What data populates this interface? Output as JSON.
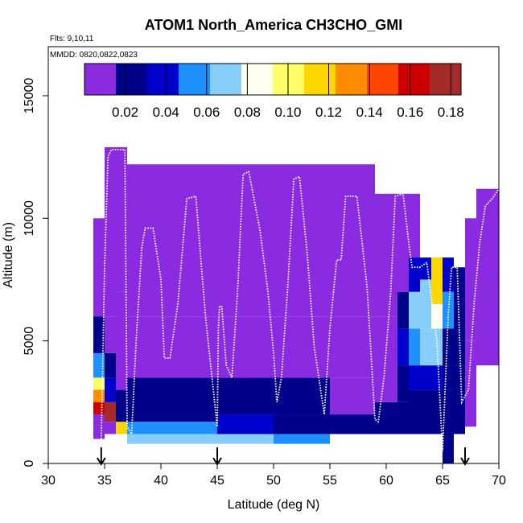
{
  "chart_data": {
    "type": "heatmap",
    "title": "ATOM1 North_America CH3CHO_GMI",
    "annotations": {
      "flights": "Flts: 9,10,11",
      "dates": "MMDD: 0820,0822,0823"
    },
    "xlabel": "Latitude (deg N)",
    "ylabel": "Altitude (m)",
    "xlim": [
      30,
      70
    ],
    "ylim": [
      0,
      17000
    ],
    "x_ticks": [
      "30",
      "35",
      "40",
      "45",
      "50",
      "55",
      "60",
      "65",
      "70"
    ],
    "y_ticks": [
      "0",
      "5000",
      "10000",
      "15000"
    ],
    "colorbar": {
      "min": 0.0,
      "max": 0.185,
      "tick_labels": [
        "0.02",
        "0.04",
        "0.06",
        "0.08",
        "0.10",
        "0.12",
        "0.14",
        "0.16",
        "0.18"
      ],
      "colors": [
        "#8a2be2",
        "#00008b",
        "#0000cd",
        "#1e90ff",
        "#87cefa",
        "#fffff0",
        "#ffff66",
        "#ffd700",
        "#ff8c00",
        "#ff4500",
        "#cc0000",
        "#a52a2a"
      ]
    },
    "markers_latitude": [
      34.7,
      45.0,
      67.0
    ],
    "columns": [
      {
        "lat0": 34.0,
        "lat1": 35.0,
        "top": 10000,
        "cells": [
          [
            1000,
            1000,
            0.01
          ],
          [
            1000,
            3000,
            0.004
          ],
          [
            2000,
            2500,
            0.16
          ],
          [
            2500,
            3000,
            0.135
          ],
          [
            3000,
            3500,
            0.1
          ],
          [
            3500,
            4500,
            0.06
          ],
          [
            4500,
            6000,
            0.02
          ],
          [
            6000,
            10000,
            0.004
          ]
        ]
      },
      {
        "lat0": 35.0,
        "lat1": 36.0,
        "top": 12900,
        "cells": [
          [
            1200,
            1700,
            0.01
          ],
          [
            1700,
            2500,
            0.17
          ],
          [
            2500,
            3500,
            0.04
          ],
          [
            3500,
            4500,
            0.02
          ],
          [
            4500,
            6000,
            0.01
          ],
          [
            6000,
            12900,
            0.004
          ]
        ]
      },
      {
        "lat0": 36.0,
        "lat1": 37.0,
        "top": 12900,
        "cells": [
          [
            1200,
            1700,
            0.11
          ],
          [
            1700,
            3000,
            0.02
          ],
          [
            3000,
            7000,
            0.01
          ],
          [
            7000,
            12900,
            0.004
          ]
        ]
      },
      {
        "lat0": 37.0,
        "lat1": 40.0,
        "top": 12200,
        "cells": [
          [
            800,
            1200,
            0.075
          ],
          [
            1200,
            1700,
            0.055
          ],
          [
            1700,
            3500,
            0.018
          ],
          [
            3500,
            6000,
            0.012
          ],
          [
            6000,
            12200,
            0.004
          ]
        ]
      },
      {
        "lat0": 40.0,
        "lat1": 45.0,
        "top": 12200,
        "cells": [
          [
            800,
            1200,
            0.07
          ],
          [
            1200,
            1700,
            0.05
          ],
          [
            1700,
            3500,
            0.02
          ],
          [
            3500,
            6000,
            0.012
          ],
          [
            6000,
            12200,
            0.004
          ]
        ]
      },
      {
        "lat0": 45.0,
        "lat1": 50.0,
        "top": 12200,
        "cells": [
          [
            800,
            1200,
            0.065
          ],
          [
            1200,
            2000,
            0.04
          ],
          [
            2000,
            3500,
            0.018
          ],
          [
            3500,
            6000,
            0.01
          ],
          [
            6000,
            12200,
            0.004
          ]
        ]
      },
      {
        "lat0": 50.0,
        "lat1": 55.0,
        "top": 12200,
        "cells": [
          [
            800,
            1200,
            0.05
          ],
          [
            1200,
            2000,
            0.03
          ],
          [
            2000,
            3500,
            0.016
          ],
          [
            3500,
            6000,
            0.01
          ],
          [
            6000,
            12200,
            0.004
          ]
        ]
      },
      {
        "lat0": 55.0,
        "lat1": 59.0,
        "top": 12200,
        "cells": [
          [
            1200,
            2000,
            0.02
          ],
          [
            2000,
            3500,
            0.015
          ],
          [
            3500,
            6000,
            0.01
          ],
          [
            6000,
            12200,
            0.004
          ]
        ]
      },
      {
        "lat0": 59.0,
        "lat1": 61.0,
        "top": 11000,
        "cells": [
          [
            1200,
            2500,
            0.02
          ],
          [
            2500,
            6000,
            0.014
          ],
          [
            6000,
            11000,
            0.005
          ]
        ]
      },
      {
        "lat0": 61.0,
        "lat1": 62.0,
        "top": 11000,
        "cells": [
          [
            1200,
            2500,
            0.02
          ],
          [
            2500,
            4000,
            0.03
          ],
          [
            4000,
            5500,
            0.045
          ],
          [
            5500,
            7000,
            0.03
          ],
          [
            7000,
            11000,
            0.006
          ]
        ]
      },
      {
        "lat0": 62.0,
        "lat1": 63.0,
        "top": 11000,
        "cells": [
          [
            1200,
            3000,
            0.02
          ],
          [
            3000,
            4000,
            0.04
          ],
          [
            4000,
            5500,
            0.06
          ],
          [
            5500,
            7000,
            0.065
          ],
          [
            7000,
            8400,
            0.04
          ],
          [
            8400,
            11000,
            0.006
          ]
        ]
      },
      {
        "lat0": 63.0,
        "lat1": 64.0,
        "top": 8400,
        "cells": [
          [
            1200,
            3000,
            0.02
          ],
          [
            3000,
            4000,
            0.04
          ],
          [
            4000,
            5500,
            0.065
          ],
          [
            5500,
            6500,
            0.075
          ],
          [
            6500,
            7500,
            0.07
          ],
          [
            7500,
            8400,
            0.04
          ]
        ]
      },
      {
        "lat0": 64.0,
        "lat1": 65.0,
        "top": 8400,
        "cells": [
          [
            1200,
            3000,
            0.02
          ],
          [
            3000,
            4000,
            0.045
          ],
          [
            4000,
            5500,
            0.07
          ],
          [
            5500,
            6500,
            0.09
          ],
          [
            6500,
            7500,
            0.11
          ],
          [
            7500,
            8400,
            0.12
          ]
        ]
      },
      {
        "lat0": 65.0,
        "lat1": 66.0,
        "top": 8400,
        "cells": [
          [
            0,
            3000,
            0.02
          ],
          [
            3000,
            5500,
            0.03
          ],
          [
            5500,
            7000,
            0.05
          ],
          [
            7000,
            8400,
            0.04
          ]
        ]
      },
      {
        "lat0": 66.0,
        "lat1": 67.0,
        "top": 8000,
        "cells": [
          [
            1200,
            4000,
            0.02
          ],
          [
            4000,
            6500,
            0.03
          ],
          [
            6500,
            8000,
            0.02
          ]
        ]
      },
      {
        "lat0": 67.0,
        "lat1": 68.0,
        "top": 10000,
        "cells": [
          [
            1500,
            5000,
            0.015
          ],
          [
            5000,
            10000,
            0.006
          ]
        ]
      },
      {
        "lat0": 68.0,
        "lat1": 70.0,
        "top": 11200,
        "cells": [
          [
            4000,
            11200,
            0.004
          ]
        ]
      }
    ],
    "flight_track": [
      [
        34.7,
        1000
      ],
      [
        35.0,
        8000
      ],
      [
        35.3,
        12500
      ],
      [
        35.6,
        12800
      ],
      [
        36.8,
        12800
      ],
      [
        37.0,
        1500
      ],
      [
        37.4,
        1200
      ],
      [
        37.8,
        5000
      ],
      [
        38.3,
        8800
      ],
      [
        38.6,
        9600
      ],
      [
        39.3,
        9600
      ],
      [
        40.0,
        7500
      ],
      [
        40.3,
        4300
      ],
      [
        40.8,
        4300
      ],
      [
        41.5,
        6500
      ],
      [
        42.3,
        10800
      ],
      [
        43.1,
        10900
      ],
      [
        43.6,
        8000
      ],
      [
        44.0,
        5800
      ],
      [
        45.0,
        1500
      ],
      [
        45.1,
        5500
      ],
      [
        45.2,
        6400
      ],
      [
        45.4,
        6400
      ],
      [
        45.8,
        4000
      ],
      [
        46.3,
        3500
      ],
      [
        46.8,
        7000
      ],
      [
        47.3,
        11800
      ],
      [
        47.8,
        11900
      ],
      [
        48.8,
        9500
      ],
      [
        49.5,
        7000
      ],
      [
        50.0,
        4500
      ],
      [
        50.3,
        2500
      ],
      [
        50.7,
        3500
      ],
      [
        51.3,
        7500
      ],
      [
        51.8,
        11600
      ],
      [
        52.3,
        11700
      ],
      [
        53.0,
        8500
      ],
      [
        53.6,
        4800
      ],
      [
        54.5,
        2000
      ],
      [
        55.0,
        5500
      ],
      [
        55.6,
        8300
      ],
      [
        56.0,
        8300
      ],
      [
        56.4,
        10900
      ],
      [
        57.4,
        10900
      ],
      [
        58.3,
        7200
      ],
      [
        59.0,
        1800
      ],
      [
        59.3,
        1700
      ],
      [
        59.8,
        3500
      ],
      [
        60.4,
        7000
      ],
      [
        60.8,
        10900
      ],
      [
        61.5,
        11000
      ],
      [
        62.0,
        9000
      ],
      [
        62.3,
        8000
      ],
      [
        63.0,
        8000
      ],
      [
        63.6,
        8200
      ],
      [
        64.5,
        5000
      ],
      [
        65.0,
        500
      ],
      [
        65.5,
        6000
      ],
      [
        65.8,
        8000
      ],
      [
        66.3,
        8000
      ],
      [
        66.7,
        2500
      ],
      [
        67.3,
        3000
      ],
      [
        67.8,
        6500
      ],
      [
        68.3,
        9000
      ],
      [
        68.8,
        10500
      ],
      [
        69.4,
        10800
      ],
      [
        70.0,
        11200
      ]
    ]
  }
}
